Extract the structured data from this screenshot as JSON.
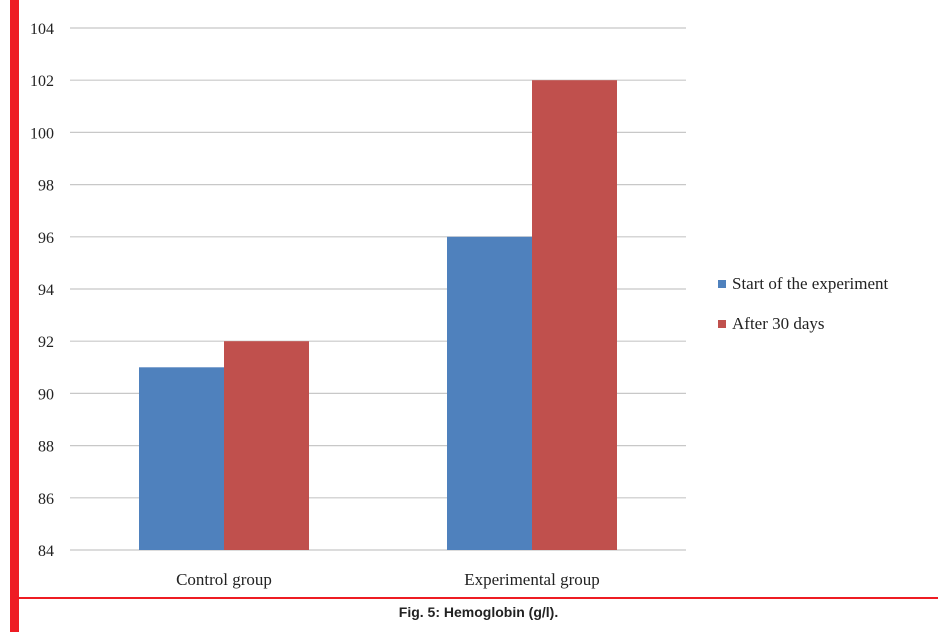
{
  "chart_data": {
    "type": "bar",
    "title": "",
    "xlabel": "",
    "ylabel": "",
    "categories": [
      "Control group",
      "Experimental group"
    ],
    "series": [
      {
        "name": "Start of the experiment",
        "values": [
          91,
          96
        ],
        "color": "#4f81bd"
      },
      {
        "name": "After 30 days",
        "values": [
          92,
          102
        ],
        "color": "#c0504d"
      }
    ],
    "ylim": [
      84,
      104
    ],
    "yticks": [
      84,
      86,
      88,
      90,
      92,
      94,
      96,
      98,
      100,
      102,
      104
    ],
    "grid": true,
    "legend_position": "right"
  },
  "caption": "Fig. 5: Hemoglobin (g/l).",
  "colors": {
    "accent_rule": "#ee1c23",
    "grid": "#c8c8c8"
  }
}
